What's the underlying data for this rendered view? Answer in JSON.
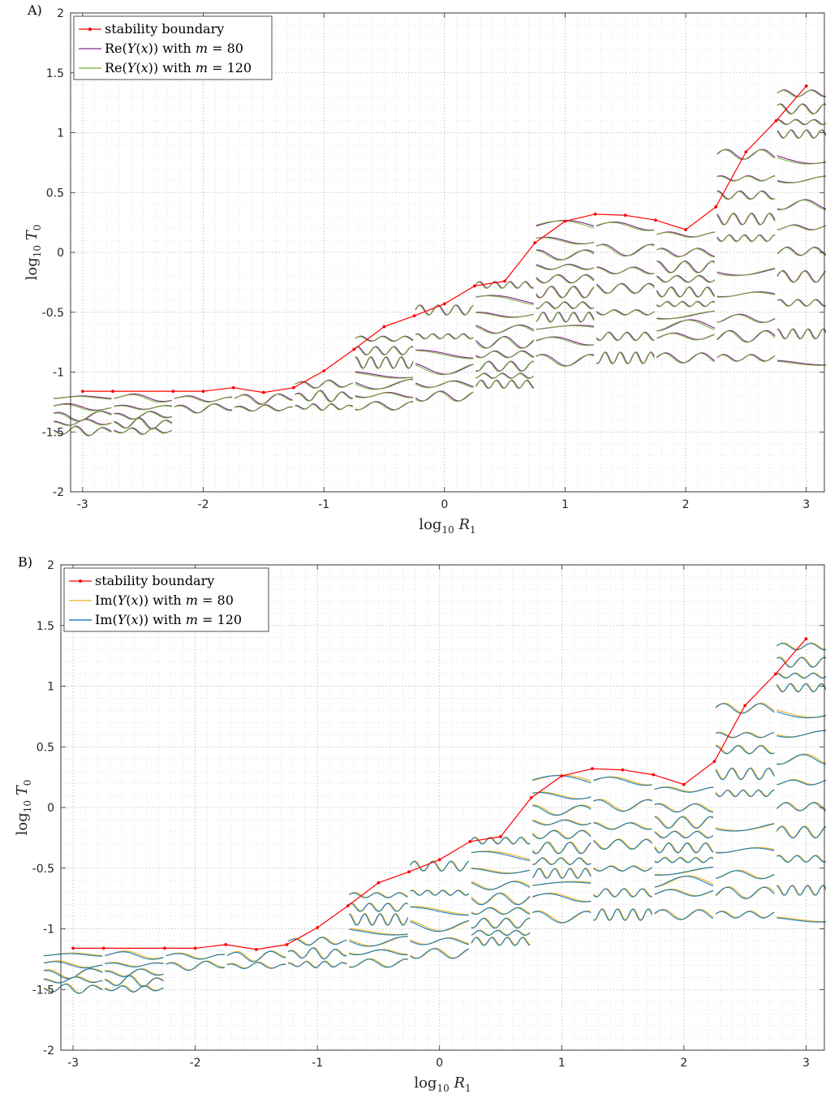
{
  "chart_data": [
    {
      "type": "line",
      "panel_label": "A)",
      "xlabel": "log10 R1",
      "ylabel": "log10 T0",
      "xlim": [
        -3.1,
        3.15
      ],
      "ylim": [
        -2,
        2
      ],
      "xticks": [
        -3,
        -2,
        -1,
        0,
        1,
        2,
        3
      ],
      "yticks": [
        -2,
        -1.5,
        -1,
        -0.5,
        0,
        0.5,
        1,
        1.5,
        2
      ],
      "grid": true,
      "legend_placement": "top-left",
      "legend": [
        "stability boundary",
        "Re(Y(x)) with m = 80",
        "Re(Y(x)) with m = 120"
      ],
      "series": [
        {
          "name": "stability boundary",
          "color": "#ff0000",
          "x": [
            -3,
            -2.75,
            -2.25,
            -2,
            -1.75,
            -1.5,
            -1.25,
            -1,
            -0.75,
            -0.5,
            -0.25,
            0,
            0.25,
            0.5,
            0.75,
            1,
            1.25,
            1.5,
            1.75,
            2,
            2.25,
            2.5,
            2.75,
            3
          ],
          "y": [
            -1.16,
            -1.16,
            -1.16,
            -1.16,
            -1.13,
            -1.17,
            -1.13,
            -0.99,
            -0.81,
            -0.62,
            -0.53,
            -0.43,
            -0.28,
            -0.24,
            0.08,
            0.26,
            0.32,
            0.31,
            0.27,
            0.19,
            0.38,
            0.84,
            1.1,
            1.39
          ]
        }
      ],
      "mode_colors": [
        "#7E2F8E",
        "#77AC30"
      ],
      "mode_columns": [
        {
          "x": -3,
          "ys": [
            -1.22,
            -1.29,
            -1.36,
            -1.42,
            -1.49
          ]
        },
        {
          "x": -2.5,
          "ys": [
            -1.22,
            -1.29,
            -1.36,
            -1.43,
            -1.49
          ]
        },
        {
          "x": -2,
          "ys": [
            -1.22,
            -1.3
          ]
        },
        {
          "x": -1.5,
          "ys": [
            -1.22,
            -1.3
          ]
        },
        {
          "x": -1,
          "ys": [
            -1.1,
            -1.2,
            -1.29
          ]
        },
        {
          "x": -0.5,
          "ys": [
            -0.72,
            -0.82,
            -0.92,
            -1.02,
            -1.1,
            -1.19,
            -1.28
          ]
        },
        {
          "x": 0,
          "ys": [
            -0.48,
            -0.7,
            -0.85,
            -0.97,
            -1.1,
            -1.2
          ]
        },
        {
          "x": 0.5,
          "ys": [
            -0.27,
            -0.4,
            -0.52,
            -0.64,
            -0.75,
            -0.85,
            -0.95,
            -1.03,
            -1.1
          ]
        },
        {
          "x": 1,
          "ys": [
            0.22,
            0.1,
            -0.02,
            -0.12,
            -0.22,
            -0.33,
            -0.44,
            -0.54,
            -0.63,
            -0.74,
            -0.9
          ]
        },
        {
          "x": 1.5,
          "ys": [
            0.22,
            0.02,
            -0.15,
            -0.3,
            -0.5,
            -0.7,
            -0.88
          ]
        },
        {
          "x": 2,
          "ys": [
            0.15,
            0.0,
            -0.12,
            -0.22,
            -0.33,
            -0.43,
            -0.52,
            -0.61,
            -0.7,
            -0.88
          ]
        },
        {
          "x": 2.5,
          "ys": [
            0.82,
            0.62,
            0.48,
            0.28,
            0.12,
            -0.15,
            -0.35,
            -0.55,
            -0.7,
            -0.88
          ]
        },
        {
          "x": 3,
          "ys": [
            1.33,
            1.2,
            1.09,
            0.99,
            0.79,
            0.61,
            0.4,
            0.21,
            0.01,
            -0.2,
            -0.42,
            -0.68,
            -0.92
          ]
        }
      ]
    },
    {
      "type": "line",
      "panel_label": "B)",
      "xlabel": "log10 R1",
      "ylabel": "log10 T0",
      "xlim": [
        -3.1,
        3.15
      ],
      "ylim": [
        -2,
        2
      ],
      "xticks": [
        -3,
        -2,
        -1,
        0,
        1,
        2,
        3
      ],
      "yticks": [
        -2,
        -1.5,
        -1,
        -0.5,
        0,
        0.5,
        1,
        1.5,
        2
      ],
      "grid": true,
      "legend_placement": "top-left",
      "legend": [
        "stability boundary",
        "Im(Y(x)) with m = 80",
        "Im(Y(x)) with m = 120"
      ],
      "series": [
        {
          "name": "stability boundary",
          "color": "#ff0000",
          "x": [
            -3,
            -2.75,
            -2.25,
            -2,
            -1.75,
            -1.5,
            -1.25,
            -1,
            -0.75,
            -0.5,
            -0.25,
            0,
            0.25,
            0.5,
            0.75,
            1,
            1.25,
            1.5,
            1.75,
            2,
            2.25,
            2.5,
            2.75,
            3
          ],
          "y": [
            -1.16,
            -1.16,
            -1.16,
            -1.16,
            -1.13,
            -1.17,
            -1.13,
            -0.99,
            -0.81,
            -0.62,
            -0.53,
            -0.43,
            -0.28,
            -0.24,
            0.08,
            0.26,
            0.32,
            0.31,
            0.27,
            0.19,
            0.38,
            0.84,
            1.1,
            1.39
          ]
        }
      ],
      "mode_colors": [
        "#EDB120",
        "#0072BD"
      ],
      "mode_columns": [
        {
          "x": -3,
          "ys": [
            -1.22,
            -1.29,
            -1.36,
            -1.42,
            -1.49
          ]
        },
        {
          "x": -2.5,
          "ys": [
            -1.22,
            -1.29,
            -1.36,
            -1.43,
            -1.49
          ]
        },
        {
          "x": -2,
          "ys": [
            -1.22,
            -1.3
          ]
        },
        {
          "x": -1.5,
          "ys": [
            -1.22,
            -1.3
          ]
        },
        {
          "x": -1,
          "ys": [
            -1.1,
            -1.2,
            -1.29
          ]
        },
        {
          "x": -0.5,
          "ys": [
            -0.72,
            -0.82,
            -0.92,
            -1.02,
            -1.1,
            -1.19,
            -1.28
          ]
        },
        {
          "x": 0,
          "ys": [
            -0.48,
            -0.7,
            -0.85,
            -0.97,
            -1.1,
            -1.2
          ]
        },
        {
          "x": 0.5,
          "ys": [
            -0.27,
            -0.4,
            -0.52,
            -0.64,
            -0.75,
            -0.85,
            -0.95,
            -1.03,
            -1.1
          ]
        },
        {
          "x": 1,
          "ys": [
            0.22,
            0.1,
            -0.02,
            -0.12,
            -0.22,
            -0.33,
            -0.44,
            -0.54,
            -0.63,
            -0.74,
            -0.9
          ]
        },
        {
          "x": 1.5,
          "ys": [
            0.22,
            0.02,
            -0.15,
            -0.3,
            -0.5,
            -0.7,
            -0.88
          ]
        },
        {
          "x": 2,
          "ys": [
            0.15,
            0.0,
            -0.12,
            -0.22,
            -0.33,
            -0.43,
            -0.52,
            -0.61,
            -0.7,
            -0.88
          ]
        },
        {
          "x": 2.5,
          "ys": [
            0.82,
            0.6,
            0.48,
            0.28,
            0.12,
            -0.15,
            -0.35,
            -0.55,
            -0.7,
            -0.88
          ]
        },
        {
          "x": 3,
          "ys": [
            1.33,
            1.2,
            1.09,
            0.99,
            0.79,
            0.61,
            0.4,
            0.21,
            0.01,
            -0.2,
            -0.42,
            -0.68,
            -0.92
          ]
        }
      ]
    }
  ]
}
